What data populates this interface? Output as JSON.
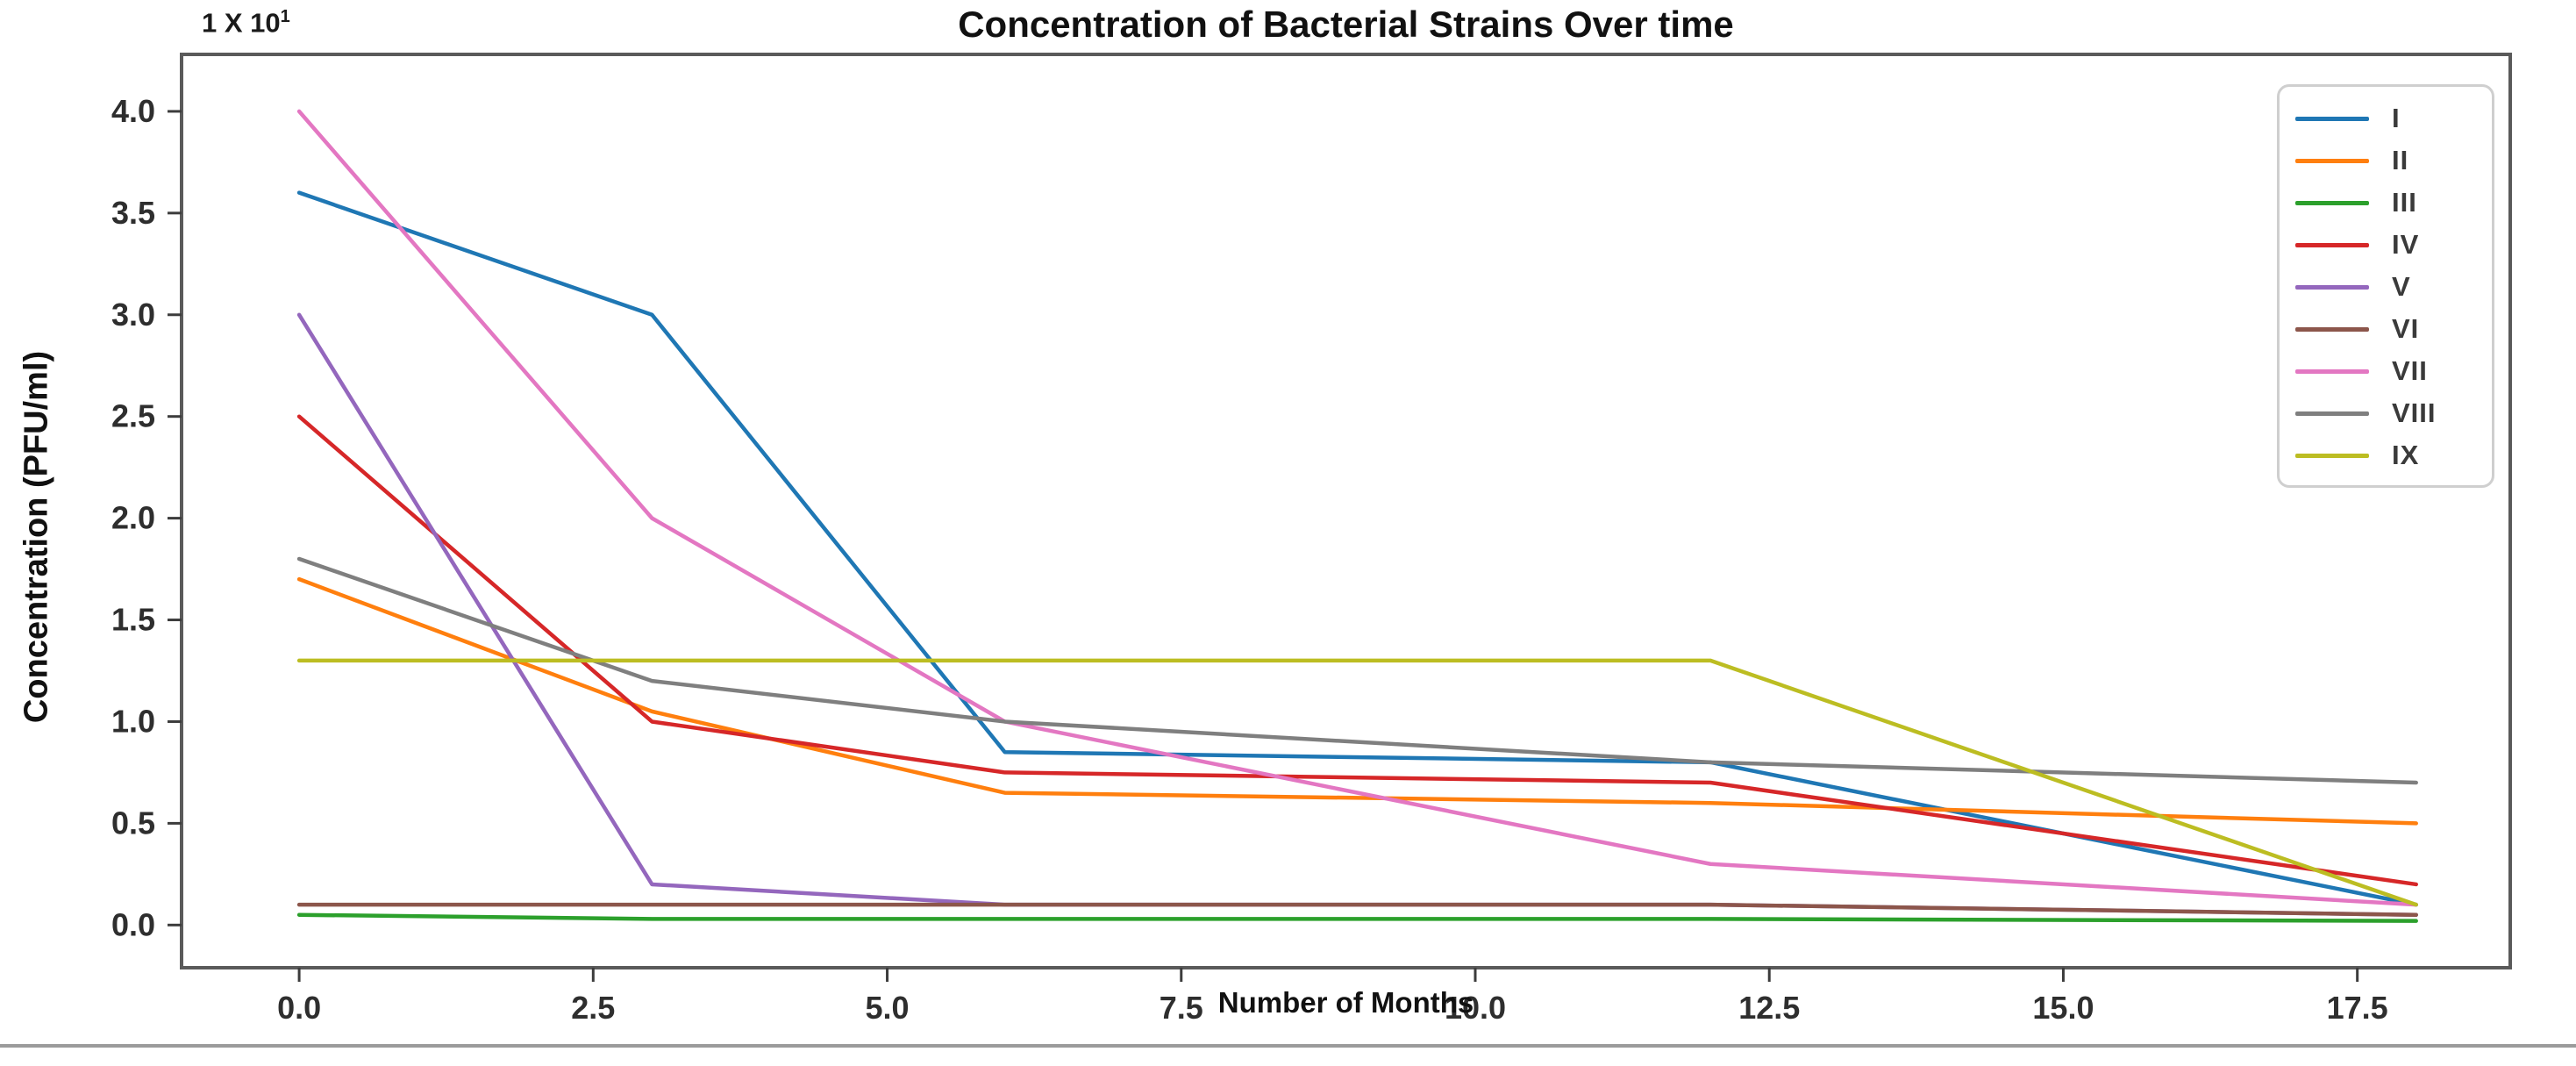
{
  "chart_data": {
    "type": "line",
    "title": "Concentration of Bacterial Strains Over time",
    "xlabel": "Number of Months",
    "ylabel": "Concentration (PFU/ml)",
    "offset_label": {
      "base": "1 X 10",
      "exp": "1"
    },
    "x": [
      0,
      3,
      6,
      12,
      18
    ],
    "series": [
      {
        "name": "I",
        "color": "#1f77b4",
        "values": [
          3.6,
          3.0,
          0.85,
          0.8,
          0.1
        ]
      },
      {
        "name": "II",
        "color": "#ff7f0e",
        "values": [
          1.7,
          1.05,
          0.65,
          0.6,
          0.5
        ]
      },
      {
        "name": "III",
        "color": "#2ca02c",
        "values": [
          0.05,
          0.03,
          0.03,
          0.03,
          0.02
        ]
      },
      {
        "name": "IV",
        "color": "#d62728",
        "values": [
          2.5,
          1.0,
          0.75,
          0.7,
          0.2
        ]
      },
      {
        "name": "V",
        "color": "#9467bd",
        "values": [
          3.0,
          0.2,
          0.1,
          0.1,
          0.05
        ]
      },
      {
        "name": "VI",
        "color": "#8c564b",
        "values": [
          0.1,
          0.1,
          0.1,
          0.1,
          0.05
        ]
      },
      {
        "name": "VII",
        "color": "#e377c2",
        "values": [
          4.0,
          2.0,
          1.0,
          0.3,
          0.1
        ]
      },
      {
        "name": "VIII",
        "color": "#7f7f7f",
        "values": [
          1.8,
          1.2,
          1.0,
          0.8,
          0.7
        ]
      },
      {
        "name": "IX",
        "color": "#bcbd22",
        "values": [
          1.3,
          1.3,
          1.3,
          1.3,
          0.1
        ]
      }
    ],
    "xticks": [
      0.0,
      2.5,
      5.0,
      7.5,
      10.0,
      12.5,
      15.0,
      17.5
    ],
    "xtick_labels": [
      "0.0",
      "2.5",
      "5.0",
      "7.5",
      "10.0",
      "12.5",
      "15.0",
      "17.5"
    ],
    "yticks": [
      0.0,
      0.5,
      1.0,
      1.5,
      2.0,
      2.5,
      3.0,
      3.5,
      4.0
    ],
    "ytick_labels": [
      "0.0",
      "0.5",
      "1.0",
      "1.5",
      "2.0",
      "2.5",
      "3.0",
      "3.5",
      "4.0"
    ],
    "xlim": [
      -1.0,
      18.8
    ],
    "ylim": [
      -0.21,
      4.28
    ],
    "grid": false,
    "legend_position": "upper right"
  }
}
